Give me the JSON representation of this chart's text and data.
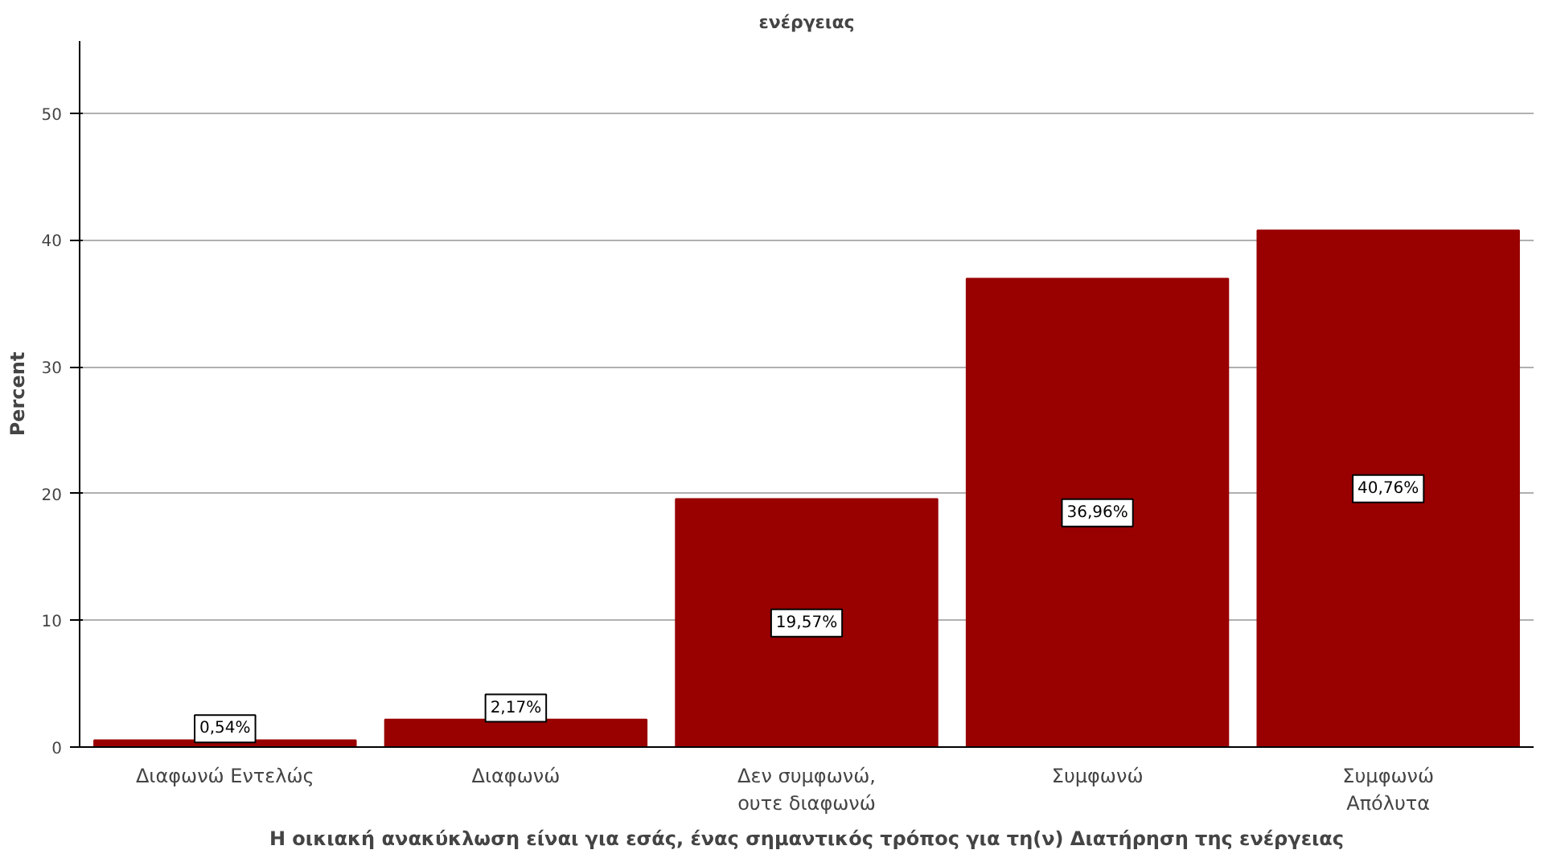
{
  "chart_data": {
    "type": "bar",
    "title": "ενέργειας",
    "xlabel": "Η οικιακή ανακύκλωση είναι για εσάς, ένας σημαντικός τρόπος για τη(ν) Διατήρηση της ενέργειας",
    "ylabel": "Percent",
    "categories": [
      "Διαφωνώ Εντελώς",
      "Διαφωνώ",
      "Δεν συμφωνώ,\nουτε διαφωνώ",
      "Συμφωνώ",
      "Συμφωνώ\nΑπόλυτα"
    ],
    "values": [
      0.54,
      2.17,
      19.57,
      36.96,
      40.76
    ],
    "value_labels": [
      "0,54%",
      "2,17%",
      "19,57%",
      "36,96%",
      "40,76%"
    ],
    "color": "#990000",
    "ylim": [
      0,
      55.7
    ],
    "yticks": [
      0,
      10,
      20,
      30,
      40,
      50
    ],
    "grid": "y"
  }
}
